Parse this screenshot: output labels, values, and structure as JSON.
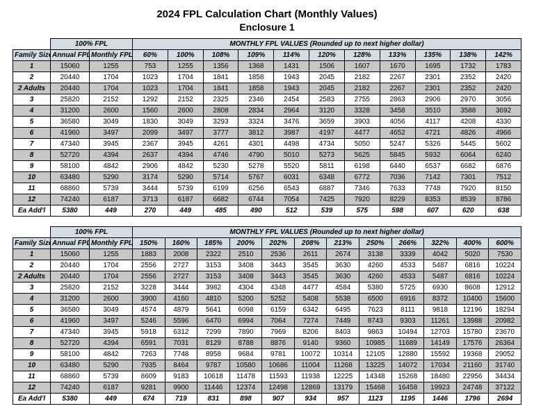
{
  "title": "2024 FPL Calculation Chart (Monthly Values)",
  "subtitle": "Enclosure 1",
  "colors": {
    "header_bg": "#d5dce5",
    "shade_bg": "#c7c7c7",
    "border": "#000000",
    "text": "#000000",
    "background": "#ffffff"
  },
  "typography": {
    "title_fontsize": 15,
    "subtitle_fontsize": 14,
    "cell_fontsize": 10,
    "font_family": "Arial"
  },
  "labels": {
    "family_size": "Family Size",
    "annual_fpl": "Annual FPL",
    "monthly_fpl": "Monthly FPL",
    "group_100": "100% FPL",
    "group_monthly": "MONTHLY FPL VALUES (Rounded up to next higher dollar)"
  },
  "row_labels": [
    "1",
    "2",
    "2 Adults",
    "3",
    "4",
    "5",
    "6",
    "7",
    "8",
    "9",
    "10",
    "11",
    "12",
    "Ea Add'l"
  ],
  "annual_fpl": [
    15060,
    20440,
    20440,
    25820,
    31200,
    36580,
    41960,
    47340,
    52720,
    58100,
    63480,
    68860,
    74240,
    5380
  ],
  "monthly_fpl": [
    1255,
    1704,
    1704,
    2152,
    2600,
    3049,
    3497,
    3945,
    4394,
    4842,
    5290,
    5739,
    6187,
    449
  ],
  "table1": {
    "pct_headers": [
      "60%",
      "100%",
      "108%",
      "109%",
      "114%",
      "120%",
      "128%",
      "133%",
      "135%",
      "138%",
      "142%"
    ],
    "rows": [
      [
        753,
        1255,
        1356,
        1368,
        1431,
        1506,
        1607,
        1670,
        1695,
        1732,
        1783
      ],
      [
        1023,
        1704,
        1841,
        1858,
        1943,
        2045,
        2182,
        2267,
        2301,
        2352,
        2420
      ],
      [
        1023,
        1704,
        1841,
        1858,
        1943,
        2045,
        2182,
        2267,
        2301,
        2352,
        2420
      ],
      [
        1292,
        2152,
        2325,
        2346,
        2454,
        2583,
        2755,
        2863,
        2906,
        2970,
        3056
      ],
      [
        1560,
        2600,
        2808,
        2834,
        2964,
        3120,
        3328,
        3458,
        3510,
        3588,
        3692
      ],
      [
        1830,
        3049,
        3293,
        3324,
        3476,
        3659,
        3903,
        4056,
        4117,
        4208,
        4330
      ],
      [
        2099,
        3497,
        3777,
        3812,
        3987,
        4197,
        4477,
        4652,
        4721,
        4826,
        4966
      ],
      [
        2367,
        3945,
        4261,
        4301,
        4498,
        4734,
        5050,
        5247,
        5326,
        5445,
        5602
      ],
      [
        2637,
        4394,
        4746,
        4790,
        5010,
        5273,
        5625,
        5845,
        5932,
        6064,
        6240
      ],
      [
        2906,
        4842,
        5230,
        5278,
        5520,
        5811,
        6198,
        6440,
        6537,
        6682,
        6876
      ],
      [
        3174,
        5290,
        5714,
        5767,
        6031,
        6348,
        6772,
        7036,
        7142,
        7301,
        7512
      ],
      [
        3444,
        5739,
        6199,
        6256,
        6543,
        6887,
        7346,
        7633,
        7748,
        7920,
        8150
      ],
      [
        3713,
        6187,
        6682,
        6744,
        7054,
        7425,
        7920,
        8229,
        8353,
        8539,
        8786
      ],
      [
        270,
        449,
        485,
        490,
        512,
        539,
        575,
        598,
        607,
        620,
        638
      ]
    ]
  },
  "table2": {
    "pct_headers": [
      "150%",
      "160%",
      "185%",
      "200%",
      "202%",
      "208%",
      "213%",
      "250%",
      "266%",
      "322%",
      "400%",
      "600%"
    ],
    "rows": [
      [
        1883,
        2008,
        2322,
        2510,
        2536,
        2611,
        2674,
        3138,
        3339,
        4042,
        5020,
        7530
      ],
      [
        2556,
        2727,
        3153,
        3408,
        3443,
        3545,
        3630,
        4260,
        4533,
        5487,
        6816,
        10224
      ],
      [
        2556,
        2727,
        3153,
        3408,
        3443,
        3545,
        3630,
        4260,
        4533,
        5487,
        6816,
        10224
      ],
      [
        3228,
        3444,
        3982,
        4304,
        4348,
        4477,
        4584,
        5380,
        5725,
        6930,
        8608,
        12912
      ],
      [
        3900,
        4160,
        4810,
        5200,
        5252,
        5408,
        5538,
        6500,
        6916,
        8372,
        10400,
        15600
      ],
      [
        4574,
        4879,
        5641,
        6098,
        6159,
        6342,
        6495,
        7623,
        8111,
        9818,
        12196,
        18294
      ],
      [
        5246,
        5596,
        6470,
        6994,
        7064,
        7274,
        7449,
        8743,
        9303,
        11261,
        13988,
        20982
      ],
      [
        5918,
        6312,
        7299,
        7890,
        7969,
        8206,
        8403,
        9863,
        10494,
        12703,
        15780,
        23670
      ],
      [
        6591,
        7031,
        8129,
        8788,
        8876,
        9140,
        9360,
        10985,
        11689,
        14149,
        17576,
        26364
      ],
      [
        7263,
        7748,
        8958,
        9684,
        9781,
        10072,
        10314,
        12105,
        12880,
        15592,
        19368,
        29052
      ],
      [
        7935,
        8464,
        9787,
        10580,
        10686,
        11004,
        11268,
        13225,
        14072,
        17034,
        21160,
        31740
      ],
      [
        8609,
        9183,
        10618,
        11478,
        11593,
        11938,
        12225,
        14348,
        15268,
        18480,
        22956,
        34434
      ],
      [
        9281,
        9900,
        11446,
        12374,
        12498,
        12869,
        13179,
        15468,
        16458,
        19923,
        24748,
        37122
      ],
      [
        674,
        719,
        831,
        898,
        907,
        934,
        957,
        1123,
        1195,
        1446,
        1796,
        2694
      ]
    ]
  }
}
